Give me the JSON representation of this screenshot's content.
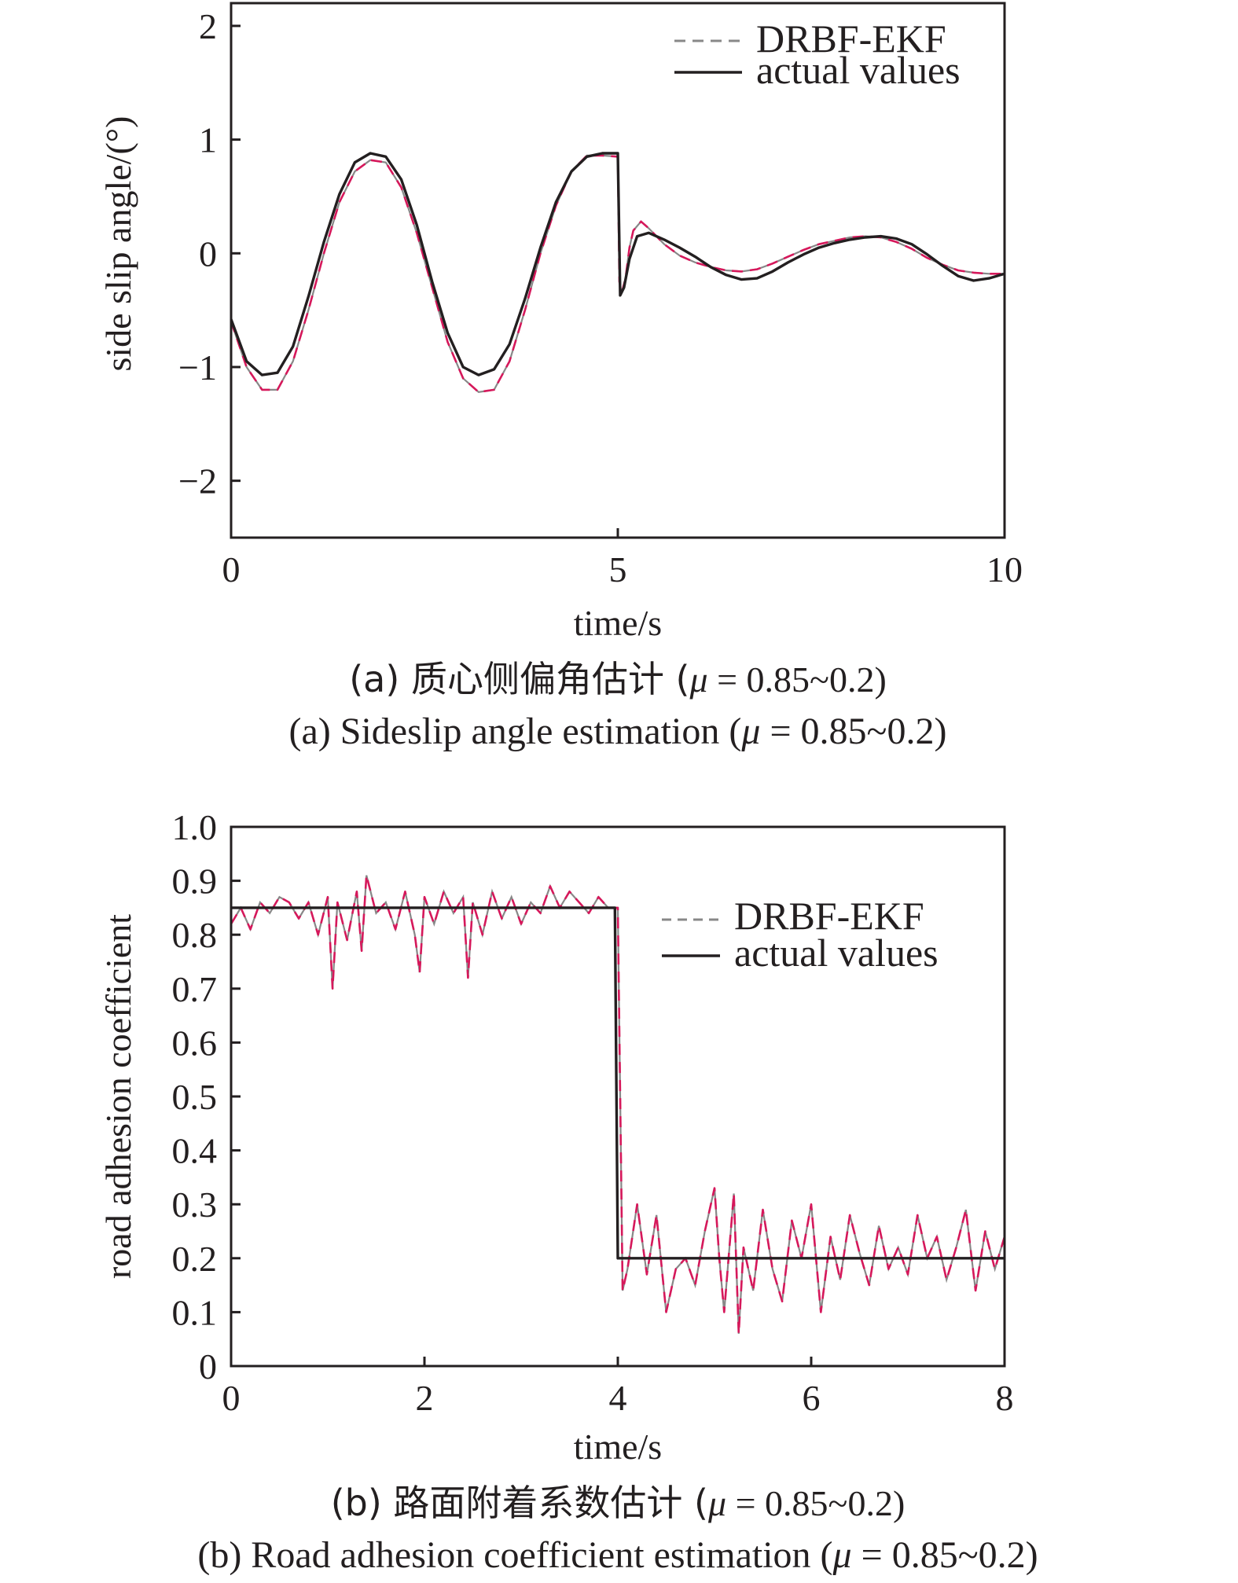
{
  "panel_a": {
    "caption_cn_prefix": "(a) 质心侧偏角估计 (",
    "caption_en_prefix": "(a) Sideslip angle estimation (",
    "mu_symbol": "μ",
    "mu_value": " = 0.85~0.2)"
  },
  "panel_b": {
    "caption_cn_prefix": "(b) 路面附着系数估计 (",
    "caption_en_prefix": "(b) Road adhesion coefficient estimation (",
    "mu_symbol": "μ",
    "mu_value": " = 0.85~0.2)"
  },
  "colors": {
    "estimate": "#d6185b",
    "estimate_alt": "#888888",
    "actual": "#231f20"
  },
  "chart_data": [
    {
      "type": "line",
      "xlabel": "time/s",
      "ylabel": "side slip angle/(°)",
      "xlim": [
        0,
        10
      ],
      "ylim": [
        -2.5,
        2.2
      ],
      "xticks": [
        0,
        5,
        10
      ],
      "xtick_labels": [
        "0",
        "5",
        "10"
      ],
      "yticks": [
        2,
        1,
        0,
        -1,
        -2
      ],
      "ytick_labels": [
        "2",
        "1",
        "0",
        "−1",
        "−2"
      ],
      "legend_position": "top-right",
      "grid": false,
      "series": [
        {
          "name": "DRBF-EKF",
          "style": "dashed",
          "x": [
            0,
            0.2,
            0.4,
            0.6,
            0.8,
            1.0,
            1.2,
            1.4,
            1.6,
            1.8,
            2.0,
            2.2,
            2.4,
            2.6,
            2.8,
            3.0,
            3.2,
            3.4,
            3.6,
            3.8,
            4.0,
            4.2,
            4.4,
            4.6,
            4.8,
            5.0,
            5.02,
            5.05,
            5.1,
            5.15,
            5.2,
            5.3,
            5.4,
            5.6,
            5.8,
            6.0,
            6.2,
            6.4,
            6.6,
            6.8,
            7.0,
            7.2,
            7.4,
            7.6,
            7.8,
            8.0,
            8.2,
            8.4,
            8.6,
            8.8,
            9.0,
            9.2,
            9.4,
            9.6,
            9.8,
            10.0
          ],
          "y": [
            -0.6,
            -1.0,
            -1.2,
            -1.2,
            -0.95,
            -0.5,
            0.0,
            0.45,
            0.72,
            0.82,
            0.8,
            0.58,
            0.18,
            -0.3,
            -0.78,
            -1.1,
            -1.22,
            -1.2,
            -0.95,
            -0.5,
            0.0,
            0.42,
            0.72,
            0.86,
            0.86,
            0.85,
            -0.25,
            -0.35,
            -0.22,
            0.05,
            0.2,
            0.28,
            0.22,
            0.08,
            -0.02,
            -0.08,
            -0.12,
            -0.15,
            -0.16,
            -0.14,
            -0.09,
            -0.03,
            0.03,
            0.08,
            0.11,
            0.14,
            0.15,
            0.14,
            0.1,
            0.04,
            -0.04,
            -0.1,
            -0.15,
            -0.17,
            -0.18,
            -0.18
          ]
        },
        {
          "name": "actual values",
          "style": "solid",
          "x": [
            0,
            0.2,
            0.4,
            0.6,
            0.8,
            1.0,
            1.2,
            1.4,
            1.6,
            1.8,
            2.0,
            2.2,
            2.4,
            2.6,
            2.8,
            3.0,
            3.2,
            3.4,
            3.6,
            3.8,
            4.0,
            4.2,
            4.4,
            4.6,
            4.8,
            5.0,
            5.03,
            5.08,
            5.15,
            5.25,
            5.4,
            5.6,
            5.8,
            6.0,
            6.2,
            6.4,
            6.6,
            6.8,
            7.0,
            7.2,
            7.4,
            7.6,
            7.8,
            8.0,
            8.2,
            8.4,
            8.6,
            8.8,
            9.0,
            9.2,
            9.4,
            9.6,
            9.8,
            10.0
          ],
          "y": [
            -0.58,
            -0.95,
            -1.07,
            -1.05,
            -0.82,
            -0.38,
            0.1,
            0.52,
            0.8,
            0.88,
            0.85,
            0.65,
            0.25,
            -0.25,
            -0.7,
            -1.0,
            -1.07,
            -1.02,
            -0.8,
            -0.4,
            0.05,
            0.45,
            0.72,
            0.85,
            0.88,
            0.88,
            -0.37,
            -0.3,
            -0.05,
            0.15,
            0.18,
            0.12,
            0.05,
            -0.03,
            -0.12,
            -0.19,
            -0.23,
            -0.22,
            -0.16,
            -0.08,
            -0.01,
            0.05,
            0.09,
            0.12,
            0.14,
            0.15,
            0.13,
            0.08,
            -0.01,
            -0.11,
            -0.2,
            -0.24,
            -0.22,
            -0.18
          ]
        }
      ]
    },
    {
      "type": "line",
      "xlabel": "time/s",
      "ylabel": "road adhesion coefficient",
      "xlim": [
        0,
        8
      ],
      "ylim": [
        0,
        1.0
      ],
      "xticks": [
        0,
        2,
        4,
        6,
        8
      ],
      "xtick_labels": [
        "0",
        "2",
        "4",
        "6",
        "8"
      ],
      "yticks": [
        1.0,
        0.9,
        0.8,
        0.7,
        0.6,
        0.5,
        0.4,
        0.3,
        0.2,
        0.1,
        0
      ],
      "ytick_labels": [
        "1.0",
        "0.9",
        "0.8",
        "0.7",
        "0.6",
        "0.5",
        "0.4",
        "0.3",
        "0.2",
        "0.1",
        "0"
      ],
      "legend_position": "top-right",
      "grid": false,
      "series": [
        {
          "name": "DRBF-EKF",
          "style": "dashed",
          "x": [
            0,
            0.1,
            0.2,
            0.3,
            0.4,
            0.5,
            0.6,
            0.7,
            0.8,
            0.9,
            1.0,
            1.05,
            1.1,
            1.2,
            1.3,
            1.35,
            1.4,
            1.5,
            1.6,
            1.7,
            1.8,
            1.9,
            1.95,
            2.0,
            2.1,
            2.2,
            2.3,
            2.4,
            2.45,
            2.5,
            2.6,
            2.7,
            2.8,
            2.9,
            3.0,
            3.1,
            3.2,
            3.3,
            3.4,
            3.5,
            3.6,
            3.7,
            3.8,
            3.9,
            4.0,
            4.05,
            4.1,
            4.2,
            4.3,
            4.4,
            4.5,
            4.6,
            4.7,
            4.8,
            4.9,
            5.0,
            5.05,
            5.1,
            5.2,
            5.25,
            5.3,
            5.4,
            5.5,
            5.6,
            5.7,
            5.8,
            5.9,
            6.0,
            6.1,
            6.2,
            6.3,
            6.4,
            6.5,
            6.6,
            6.7,
            6.8,
            6.9,
            7.0,
            7.1,
            7.2,
            7.3,
            7.4,
            7.5,
            7.6,
            7.7,
            7.8,
            7.9,
            8.0
          ],
          "y": [
            0.82,
            0.85,
            0.81,
            0.86,
            0.84,
            0.87,
            0.86,
            0.83,
            0.86,
            0.8,
            0.87,
            0.7,
            0.86,
            0.79,
            0.88,
            0.77,
            0.91,
            0.84,
            0.86,
            0.81,
            0.88,
            0.8,
            0.73,
            0.87,
            0.82,
            0.88,
            0.84,
            0.87,
            0.72,
            0.86,
            0.8,
            0.88,
            0.83,
            0.87,
            0.82,
            0.86,
            0.84,
            0.89,
            0.85,
            0.88,
            0.86,
            0.84,
            0.87,
            0.85,
            0.85,
            0.14,
            0.18,
            0.3,
            0.17,
            0.28,
            0.1,
            0.18,
            0.2,
            0.15,
            0.25,
            0.33,
            0.2,
            0.1,
            0.32,
            0.06,
            0.22,
            0.14,
            0.29,
            0.18,
            0.12,
            0.27,
            0.2,
            0.3,
            0.1,
            0.24,
            0.16,
            0.28,
            0.21,
            0.15,
            0.26,
            0.18,
            0.22,
            0.17,
            0.28,
            0.2,
            0.24,
            0.16,
            0.22,
            0.29,
            0.14,
            0.25,
            0.18,
            0.24
          ]
        },
        {
          "name": "actual values",
          "style": "solid",
          "x": [
            0,
            3.97,
            4.0,
            8.0
          ],
          "y": [
            0.85,
            0.85,
            0.2,
            0.2
          ]
        }
      ]
    }
  ]
}
